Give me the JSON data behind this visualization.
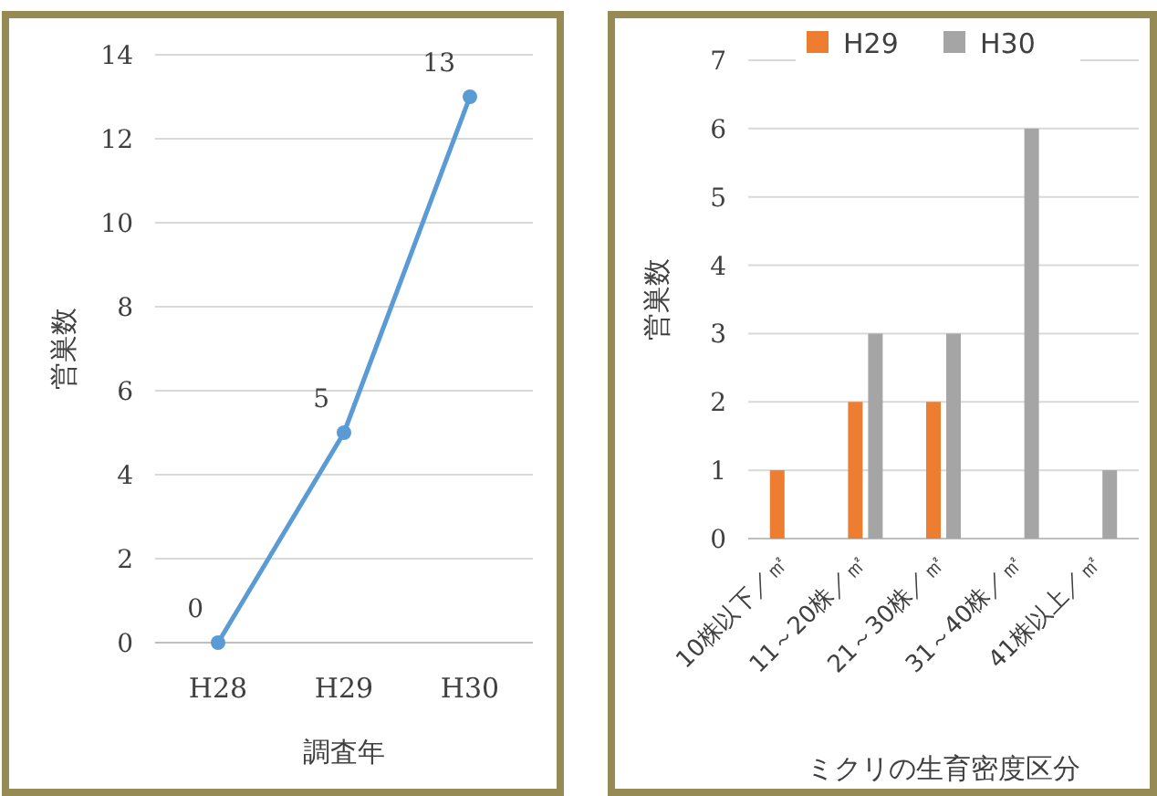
{
  "chart_data": [
    {
      "type": "line",
      "categories": [
        "H28",
        "H29",
        "H30"
      ],
      "values": [
        0,
        5,
        13
      ],
      "color": "#5b9bd5",
      "ylim": [
        0,
        14
      ],
      "yticks": [
        0,
        2,
        4,
        6,
        8,
        10,
        12,
        14
      ],
      "ylabel": "営巣数",
      "xlabel": "調査年",
      "data_labels": true,
      "grid": "y",
      "marker": "circle",
      "line_style": "solid"
    },
    {
      "type": "bar",
      "categories": [
        "10株以下／㎡",
        "11～20株／㎡",
        "21～30株／㎡",
        "31～40株／㎡",
        "41株以上／㎡"
      ],
      "series": [
        {
          "name": "H29",
          "color": "#ed7d31",
          "values": [
            1,
            2,
            2,
            0,
            0
          ]
        },
        {
          "name": "H30",
          "color": "#a5a5a5",
          "values": [
            0,
            3,
            3,
            6,
            1
          ]
        }
      ],
      "ylim": [
        0,
        7
      ],
      "yticks": [
        0,
        1,
        2,
        3,
        4,
        5,
        6,
        7
      ],
      "ylabel": "営巣数",
      "xlabel": "ミクリの生育密度区分",
      "grid": "y",
      "legend": "top"
    }
  ]
}
